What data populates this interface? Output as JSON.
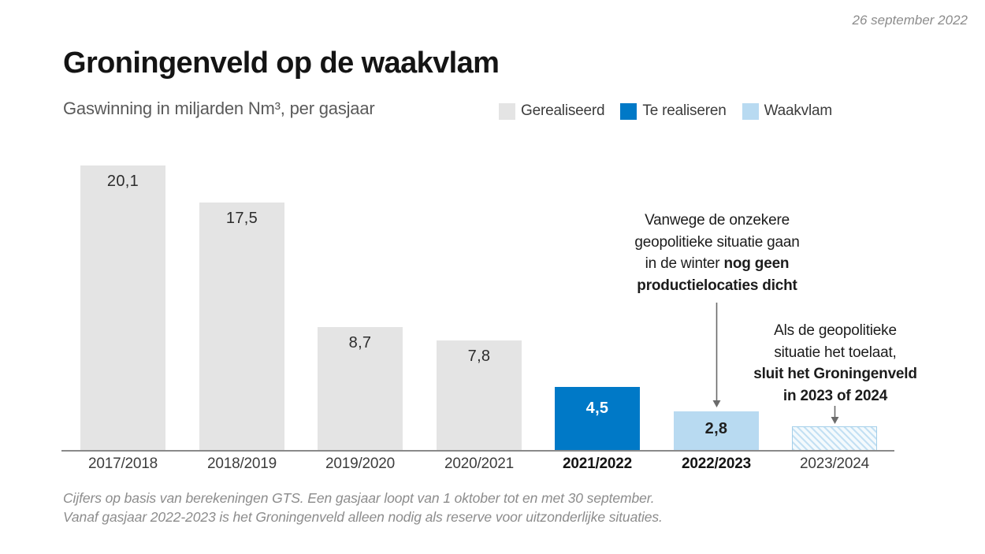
{
  "meta": {
    "date": "26 september 2022"
  },
  "header": {
    "title": "Groningenveld op de waakvlam",
    "subtitle": "Gaswinning in miljarden Nm³, per gasjaar"
  },
  "legend": [
    {
      "label": "Gerealiseerd",
      "color": "#e4e4e4"
    },
    {
      "label": "Te realiseren",
      "color": "#0079c7"
    },
    {
      "label": "Waakvlam",
      "color": "#b8daf1"
    }
  ],
  "chart_data": {
    "type": "bar",
    "title": "Groningenveld op de waakvlam",
    "subtitle": "Gaswinning in miljarden Nm³, per gasjaar",
    "ylabel": "Gaswinning in miljarden Nm³",
    "xlabel": "gasjaar",
    "grid": false,
    "legend_position": "top-right",
    "categories": [
      "2017/2018",
      "2018/2019",
      "2019/2020",
      "2020/2021",
      "2021/2022",
      "2022/2023",
      "2023/2024"
    ],
    "bars": [
      {
        "category": "2017/2018",
        "value": 20.1,
        "label": "20,1",
        "series": "Gerealiseerd",
        "hatched": false,
        "bold_category": false
      },
      {
        "category": "2018/2019",
        "value": 17.5,
        "label": "17,5",
        "series": "Gerealiseerd",
        "hatched": false,
        "bold_category": false
      },
      {
        "category": "2019/2020",
        "value": 8.7,
        "label": "8,7",
        "series": "Gerealiseerd",
        "hatched": false,
        "bold_category": false
      },
      {
        "category": "2020/2021",
        "value": 7.8,
        "label": "7,8",
        "series": "Gerealiseerd",
        "hatched": false,
        "bold_category": false
      },
      {
        "category": "2021/2022",
        "value": 4.5,
        "label": "4,5",
        "series": "Te realiseren",
        "hatched": false,
        "bold_category": true
      },
      {
        "category": "2022/2023",
        "value": 2.8,
        "label": "2,8",
        "series": "Waakvlam",
        "hatched": false,
        "bold_category": true
      },
      {
        "category": "2023/2024",
        "value": null,
        "label": "",
        "series": "Waakvlam",
        "hatched": true,
        "bold_category": false
      }
    ],
    "colors": {
      "Gerealiseerd": "#e4e4e4",
      "Te realiseren": "#0079c7",
      "Waakvlam": "#b8daf1"
    }
  },
  "annotations": [
    {
      "lines": [
        [
          {
            "t": "Vanwege de onzekere",
            "b": 0
          }
        ],
        [
          {
            "t": "geopolitieke situatie gaan",
            "b": 0
          }
        ],
        [
          {
            "t": "in de winter ",
            "b": 0
          },
          {
            "t": "nog geen",
            "b": 1
          }
        ],
        [
          {
            "t": "productielocaties dicht",
            "b": 1
          }
        ]
      ]
    },
    {
      "lines": [
        [
          {
            "t": "Als de geopolitieke",
            "b": 0
          }
        ],
        [
          {
            "t": "situatie het toelaat,",
            "b": 0
          }
        ],
        [
          {
            "t": "sluit het Groningenveld",
            "b": 1
          }
        ],
        [
          {
            "t": "in 2023 of 2024",
            "b": 1
          }
        ]
      ]
    }
  ],
  "footer": {
    "line1": "Cijfers op basis van berekeningen GTS. Een gasjaar loopt van 1 oktober tot en met 30 september.",
    "line2": "Vanaf gasjaar 2022-2023 is het Groningenveld alleen nodig als reserve voor uitzonderlijke situaties."
  }
}
